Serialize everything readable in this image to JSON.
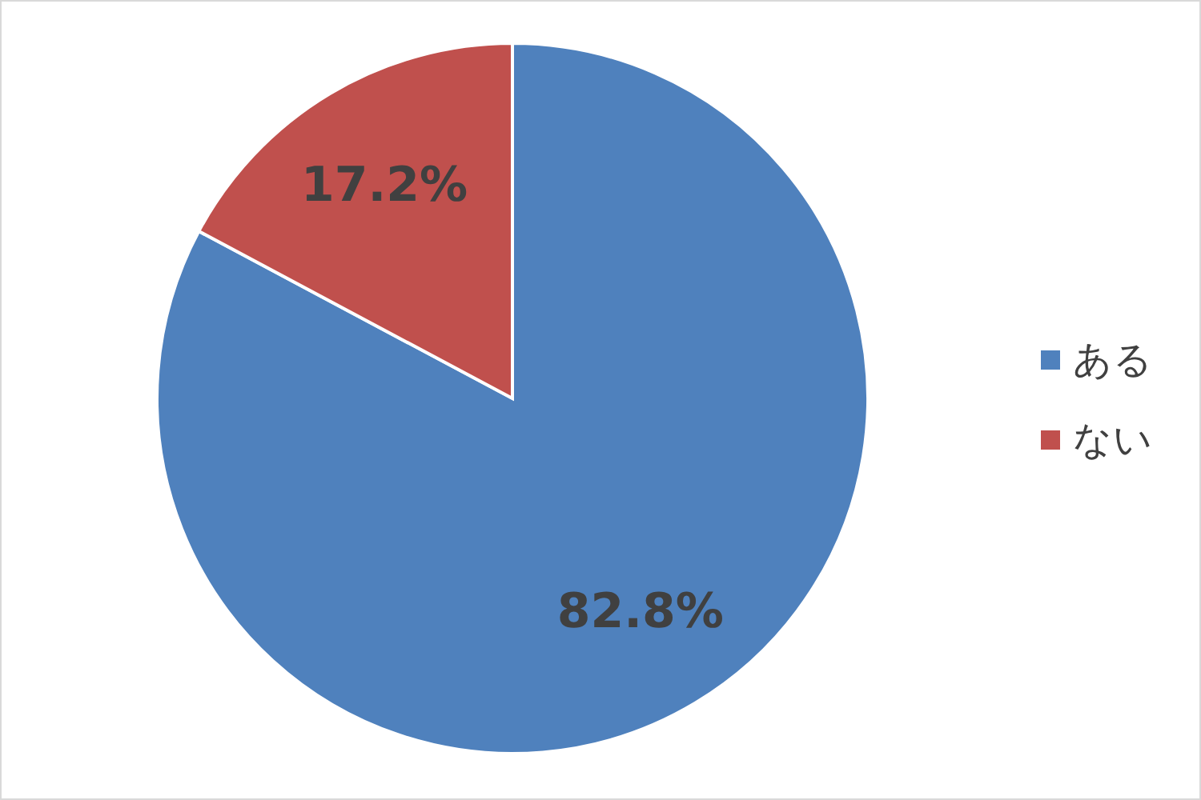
{
  "chart_data": {
    "type": "pie",
    "categories": [
      "ある",
      "ない"
    ],
    "values": [
      82.8,
      17.2
    ],
    "colors": [
      "#4f81bd",
      "#c0504d"
    ],
    "value_labels": [
      "82.8%",
      "17.2%"
    ],
    "legend": "right"
  }
}
